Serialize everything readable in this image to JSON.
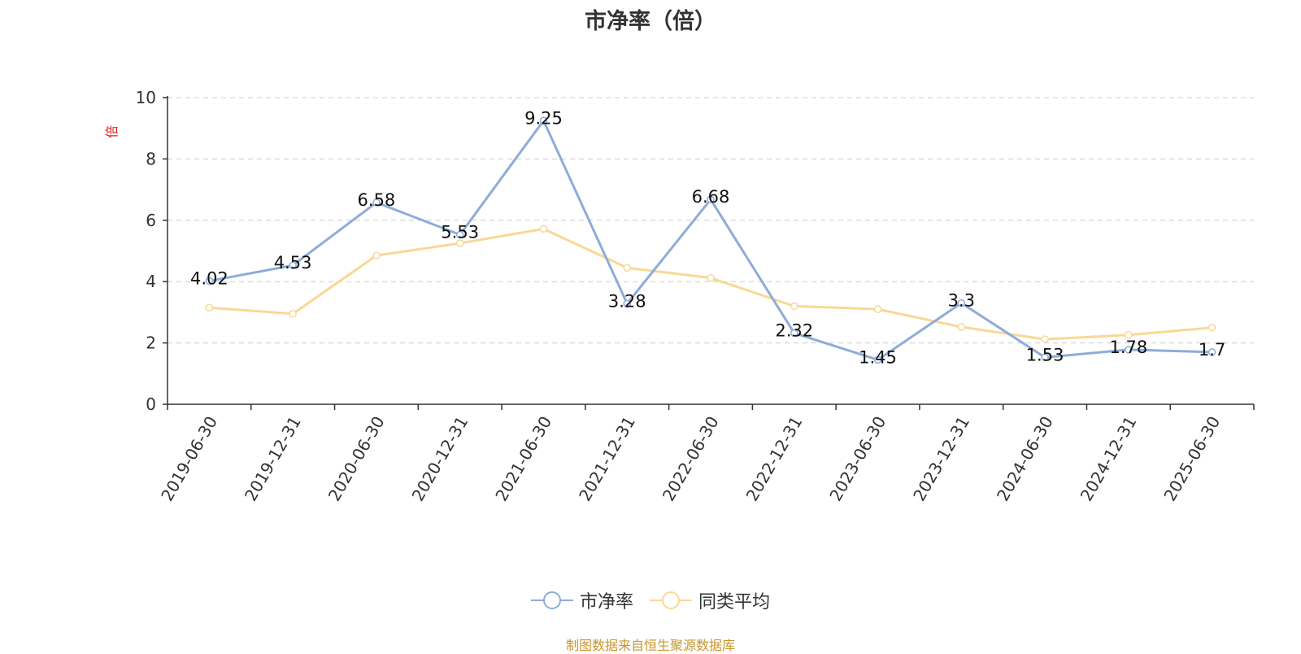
{
  "title": "市净率（倍）",
  "source_note": "制图数据来自恒生聚源数据库",
  "colors": {
    "pb": "#8eacd8",
    "avg": "#f9d896",
    "grid": "#cccccc",
    "axis": "#333333",
    "unit": "#e0201b"
  },
  "chart_data": {
    "type": "line",
    "title": "市净率（倍）",
    "ylabel": "倍",
    "ylim": [
      0,
      10
    ],
    "yticks": [
      0,
      2,
      4,
      6,
      8,
      10
    ],
    "grid": true,
    "legend_position": "bottom",
    "categories": [
      "2019-06-30",
      "2019-12-31",
      "2020-06-30",
      "2020-12-31",
      "2021-06-30",
      "2021-12-31",
      "2022-06-30",
      "2022-12-31",
      "2023-06-30",
      "2023-12-31",
      "2024-06-30",
      "2024-12-31",
      "2025-06-30"
    ],
    "series": [
      {
        "name": "市净率",
        "values": [
          4.02,
          4.53,
          6.58,
          5.53,
          9.25,
          3.28,
          6.68,
          2.32,
          1.45,
          3.3,
          1.53,
          1.78,
          1.7
        ],
        "labels": [
          "4.02",
          "4.53",
          "6.58",
          "5.53",
          "9.25",
          "3.28",
          "6.68",
          "2.32",
          "1.45",
          "3.3",
          "1.53",
          "1.78",
          "1.7"
        ]
      },
      {
        "name": "同类平均",
        "values": [
          3.15,
          2.95,
          4.85,
          5.25,
          5.72,
          4.45,
          4.12,
          3.2,
          3.1,
          2.52,
          2.12,
          2.26,
          2.5
        ]
      }
    ]
  }
}
